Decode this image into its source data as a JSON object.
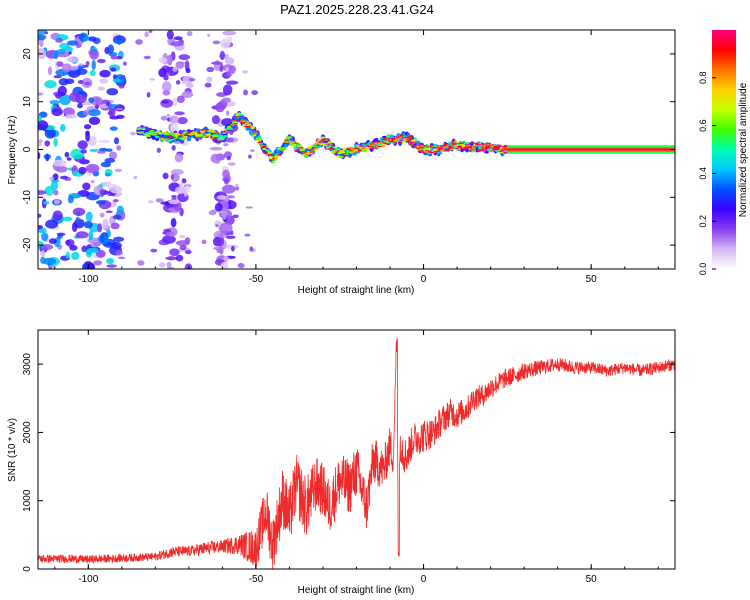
{
  "chart_data": [
    {
      "type": "heatmap",
      "title": "PAZ1.2025.228.23.41.G24",
      "xlabel": "Height of straight line (km)",
      "ylabel": "Frequency (Hz)",
      "xlim": [
        -115,
        75
      ],
      "ylim": [
        -25,
        25
      ],
      "xticks": [
        -100,
        -50,
        0,
        50
      ],
      "yticks": [
        -20,
        -10,
        0,
        10,
        20
      ],
      "colorbar": {
        "label": "Normalized spectral amplitude",
        "range": [
          0,
          1
        ],
        "ticks": [
          "0.0",
          "0.2",
          "0.4",
          "0.6",
          "0.8"
        ],
        "colormap": [
          "#ffffff",
          "#d6b8f5",
          "#8a3cf0",
          "#3a00ff",
          "#0050ff",
          "#00c8ff",
          "#00ffb0",
          "#40ff00",
          "#c8ff00",
          "#ffd000",
          "#ff7000",
          "#ff0000",
          "#ff0080"
        ]
      },
      "ridge": {
        "x": [
          -85,
          -80,
          -75,
          -70,
          -65,
          -60,
          -55,
          -50,
          -45,
          -40,
          -35,
          -30,
          -25,
          -20,
          -15,
          -10,
          -5,
          0,
          5,
          10,
          15,
          20,
          25,
          30,
          40,
          50,
          60,
          75
        ],
        "y": [
          4,
          3,
          2.5,
          3,
          3.5,
          2.5,
          7,
          3,
          -2,
          2,
          -1,
          2,
          -1,
          0,
          1,
          2,
          2.5,
          0,
          0,
          1,
          0.5,
          0.5,
          0,
          0,
          0,
          0,
          0,
          0
        ],
        "amplitude": [
          0.25,
          0.3,
          0.45,
          0.5,
          0.55,
          0.35,
          0.5,
          0.55,
          0.5,
          0.45,
          0.5,
          0.55,
          0.5,
          0.6,
          0.7,
          0.75,
          0.8,
          0.75,
          0.8,
          0.8,
          0.85,
          0.85,
          0.9,
          0.95,
          0.95,
          0.95,
          0.95,
          0.95
        ]
      },
      "noise_bands_x": [
        [
          -115,
          -90
        ],
        [
          -78,
          -70
        ],
        [
          -62,
          -57
        ]
      ]
    },
    {
      "type": "line",
      "xlabel": "Height of straight line (km)",
      "ylabel": "SNR (10 * v/v)",
      "xlim": [
        -115,
        75
      ],
      "ylim": [
        0,
        3500
      ],
      "xticks": [
        -100,
        -50,
        0,
        50
      ],
      "yticks": [
        0,
        1000,
        2000,
        3000
      ],
      "series": [
        {
          "color": "#ee2a2a",
          "x": [
            -115,
            -105,
            -100,
            -95,
            -90,
            -85,
            -80,
            -75,
            -70,
            -65,
            -60,
            -55,
            -50,
            -47,
            -45,
            -42,
            -40,
            -38,
            -35,
            -32,
            -30,
            -28,
            -25,
            -22,
            -20,
            -17,
            -15,
            -12,
            -10,
            -9,
            -8,
            -7.5,
            -7,
            -6,
            -5,
            -3,
            0,
            3,
            5,
            8,
            10,
            13,
            15,
            18,
            20,
            23,
            25,
            28,
            30,
            35,
            40,
            45,
            50,
            55,
            60,
            65,
            70,
            75
          ],
          "y": [
            150,
            150,
            140,
            150,
            160,
            170,
            180,
            250,
            260,
            300,
            330,
            360,
            300,
            850,
            350,
            1050,
            750,
            1250,
            900,
            1250,
            1150,
            900,
            1300,
            1200,
            1450,
            900,
            1600,
            1450,
            1800,
            1650,
            3450,
            200,
            1900,
            1700,
            1650,
            1900,
            1950,
            2000,
            2150,
            2300,
            2250,
            2350,
            2500,
            2550,
            2650,
            2750,
            2800,
            2850,
            2900,
            2950,
            3000,
            2950,
            2950,
            2900,
            2950,
            2900,
            2950,
            3000
          ],
          "noise_amplitude": [
            60,
            60,
            60,
            60,
            60,
            60,
            60,
            80,
            80,
            100,
            100,
            150,
            300,
            400,
            400,
            450,
            450,
            450,
            450,
            400,
            400,
            400,
            400,
            400,
            400,
            350,
            350,
            300,
            300,
            300,
            0,
            0,
            300,
            300,
            250,
            250,
            250,
            220,
            220,
            200,
            200,
            180,
            180,
            160,
            160,
            140,
            140,
            130,
            120,
            110,
            100,
            100,
            90,
            90,
            90,
            90,
            90,
            90
          ]
        }
      ]
    }
  ]
}
